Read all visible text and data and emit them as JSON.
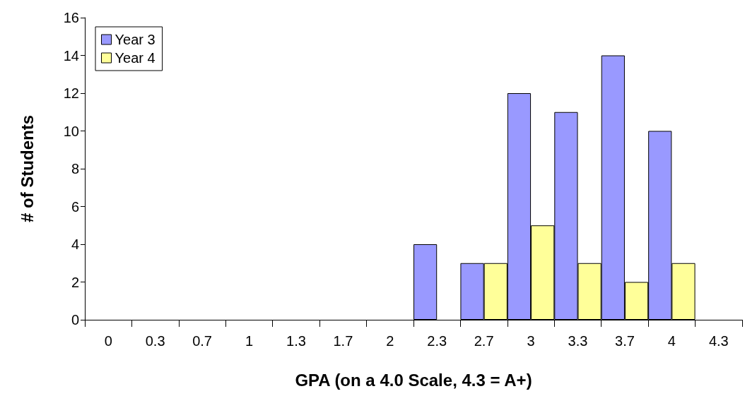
{
  "chart_data": {
    "type": "bar",
    "xlabel": "GPA (on a 4.0 Scale, 4.3 = A+)",
    "ylabel": "# of Students",
    "categories": [
      "0",
      "0.3",
      "0.7",
      "1",
      "1.3",
      "1.7",
      "2",
      "2.3",
      "2.7",
      "3",
      "3.3",
      "3.7",
      "4",
      "4.3"
    ],
    "series": [
      {
        "name": "Year 3",
        "color": "#9999ff",
        "values": [
          0,
          0,
          0,
          0,
          0,
          0,
          0,
          4,
          3,
          12,
          11,
          14,
          10,
          0
        ]
      },
      {
        "name": "Year 4",
        "color": "#ffff99",
        "values": [
          0,
          0,
          0,
          0,
          0,
          0,
          0,
          0,
          3,
          5,
          3,
          2,
          3,
          0
        ]
      }
    ],
    "ylim": [
      0,
      16
    ],
    "yticks": [
      0,
      2,
      4,
      6,
      8,
      10,
      12,
      14,
      16
    ],
    "grid": false,
    "legend": "top left"
  }
}
